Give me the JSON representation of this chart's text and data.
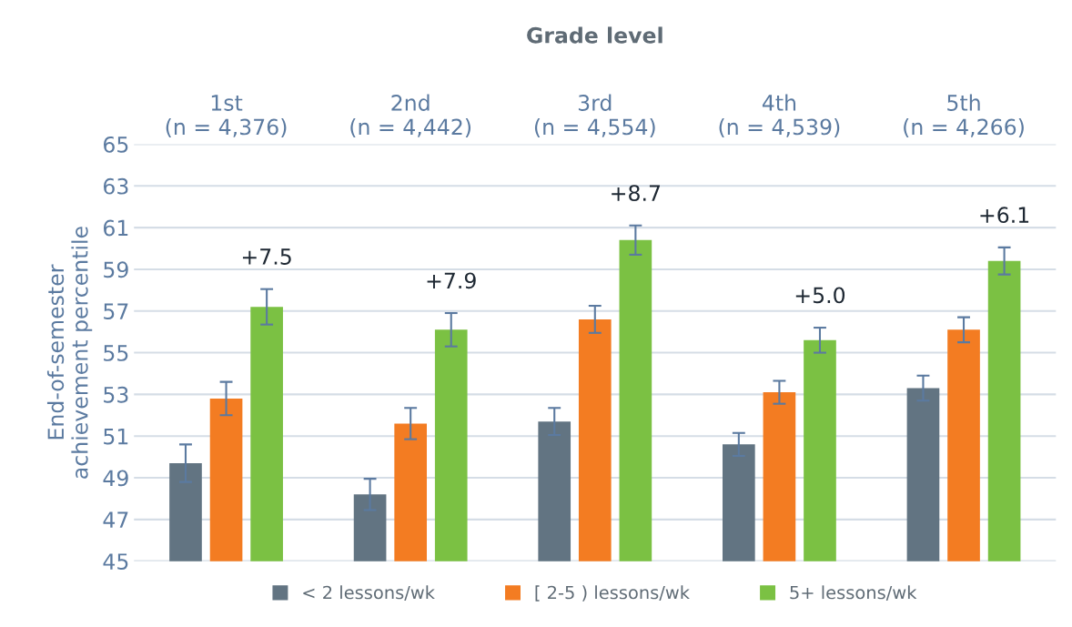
{
  "chart_data": {
    "type": "bar",
    "title": "Grade level",
    "ylabel": "End-of-semester\nachievement percentile",
    "categories": [
      "1st\n(n = 4,376)",
      "2nd\n(n = 4,442)",
      "3rd\n(n = 4,554)",
      "4th\n(n = 4,539)",
      "5th\n(n = 4,266)"
    ],
    "series": [
      {
        "name": "< 2 lessons/wk",
        "color": "#627482",
        "values": [
          49.7,
          48.2,
          51.7,
          50.6,
          53.3
        ],
        "errors": [
          0.9,
          0.75,
          0.65,
          0.55,
          0.6
        ]
      },
      {
        "name": "[ 2-5 ) lessons/wk",
        "color": "#f37c22",
        "values": [
          52.8,
          51.6,
          56.6,
          53.1,
          56.1
        ],
        "errors": [
          0.8,
          0.75,
          0.65,
          0.55,
          0.6
        ]
      },
      {
        "name": "5+ lessons/wk",
        "color": "#7bc143",
        "values": [
          57.2,
          56.1,
          60.4,
          55.6,
          59.4
        ],
        "errors": [
          0.85,
          0.8,
          0.7,
          0.6,
          0.65
        ]
      }
    ],
    "annotations": [
      "+7.5",
      "+7.9",
      "+8.7",
      "+5.0",
      "+6.1"
    ],
    "ylim": [
      45,
      65
    ],
    "yticks": [
      45,
      47,
      49,
      51,
      53,
      55,
      57,
      59,
      61,
      63,
      65
    ],
    "grid": "y",
    "legend": "bottom"
  }
}
